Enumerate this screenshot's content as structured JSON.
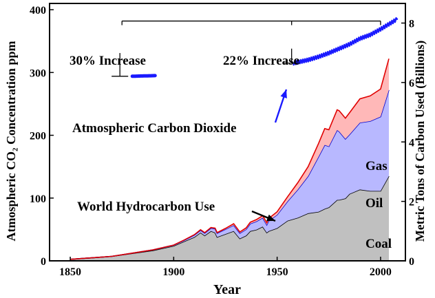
{
  "chart_data": {
    "type": "area",
    "title": "",
    "xlabel": "Year",
    "ylabel_left": "Atmospheric CO₂ Concentration ppm",
    "ylabel_right": "Metric Tons of Carbon Used (Billions)",
    "xlim": [
      1840,
      2012
    ],
    "ylim_left": [
      0,
      410
    ],
    "ylim_right": [
      0,
      8.66
    ],
    "x_ticks": [
      1850,
      1900,
      1950,
      2000
    ],
    "y_ticks_left": [
      0,
      100,
      200,
      300,
      400
    ],
    "y_ticks_right": [
      0,
      2,
      4,
      6,
      8
    ],
    "grid": false,
    "co2_series": [
      {
        "name": "Atmospheric Carbon Dioxide",
        "color": "#1a1aff",
        "points": [
          [
            1880,
            294
          ],
          [
            1885,
            294.5
          ],
          [
            1891,
            295
          ]
        ]
      },
      {
        "name": "Atmospheric Carbon Dioxide",
        "color": "#1a1aff",
        "points": [
          [
            1958,
            315
          ],
          [
            1965,
            320
          ],
          [
            1970,
            325
          ],
          [
            1975,
            331
          ],
          [
            1980,
            338
          ],
          [
            1985,
            345
          ],
          [
            1990,
            354
          ],
          [
            1995,
            360
          ],
          [
            2000,
            369
          ],
          [
            2005,
            379
          ],
          [
            2008,
            385
          ]
        ]
      }
    ],
    "hydrocarbon_stacked": {
      "x": [
        1850,
        1860,
        1870,
        1880,
        1890,
        1900,
        1905,
        1910,
        1913,
        1915,
        1918,
        1920,
        1921,
        1925,
        1929,
        1932,
        1935,
        1937,
        1940,
        1943,
        1945,
        1946,
        1950,
        1955,
        1960,
        1965,
        1970,
        1973,
        1975,
        1979,
        1980,
        1983,
        1985,
        1990,
        1995,
        2000,
        2004
      ],
      "series": [
        {
          "name": "Coal",
          "color": "#c0c0c0",
          "values": [
            0.05,
            0.1,
            0.15,
            0.25,
            0.35,
            0.5,
            0.65,
            0.8,
            0.95,
            0.85,
            1.0,
            0.95,
            0.8,
            0.9,
            1.0,
            0.75,
            0.85,
            1.0,
            1.05,
            1.15,
            0.95,
            1.0,
            1.1,
            1.35,
            1.45,
            1.6,
            1.65,
            1.75,
            1.8,
            2.05,
            2.05,
            2.1,
            2.25,
            2.4,
            2.35,
            2.35,
            2.85
          ]
        },
        {
          "name": "Oil",
          "color": "#b8b8ff",
          "values": [
            0,
            0,
            0,
            0.01,
            0.02,
            0.03,
            0.04,
            0.07,
            0.08,
            0.08,
            0.1,
            0.13,
            0.13,
            0.16,
            0.2,
            0.18,
            0.21,
            0.25,
            0.28,
            0.3,
            0.26,
            0.35,
            0.45,
            0.65,
            0.95,
            1.25,
            1.85,
            2.15,
            2.05,
            2.35,
            2.3,
            2.0,
            2.0,
            2.25,
            2.35,
            2.5,
            2.9
          ]
        },
        {
          "name": "Gas",
          "color": "#ffb8b8",
          "values": [
            0,
            0,
            0,
            0,
            0,
            0,
            0.01,
            0.01,
            0.02,
            0.02,
            0.02,
            0.02,
            0.02,
            0.03,
            0.05,
            0.04,
            0.05,
            0.05,
            0.06,
            0.07,
            0.07,
            0.08,
            0.1,
            0.15,
            0.23,
            0.32,
            0.45,
            0.55,
            0.56,
            0.68,
            0.7,
            0.7,
            0.73,
            0.8,
            0.85,
            0.93,
            1.05
          ]
        }
      ]
    },
    "annotations": {
      "co2_label": "Atmospheric Carbon Dioxide",
      "hydrocarbon_label": "World Hydrocarbon Use",
      "increase_1": "30% Increase",
      "increase_2": "22% Increase",
      "stack_coal": "Coal",
      "stack_oil": "Oil",
      "stack_gas": "Gas"
    }
  }
}
